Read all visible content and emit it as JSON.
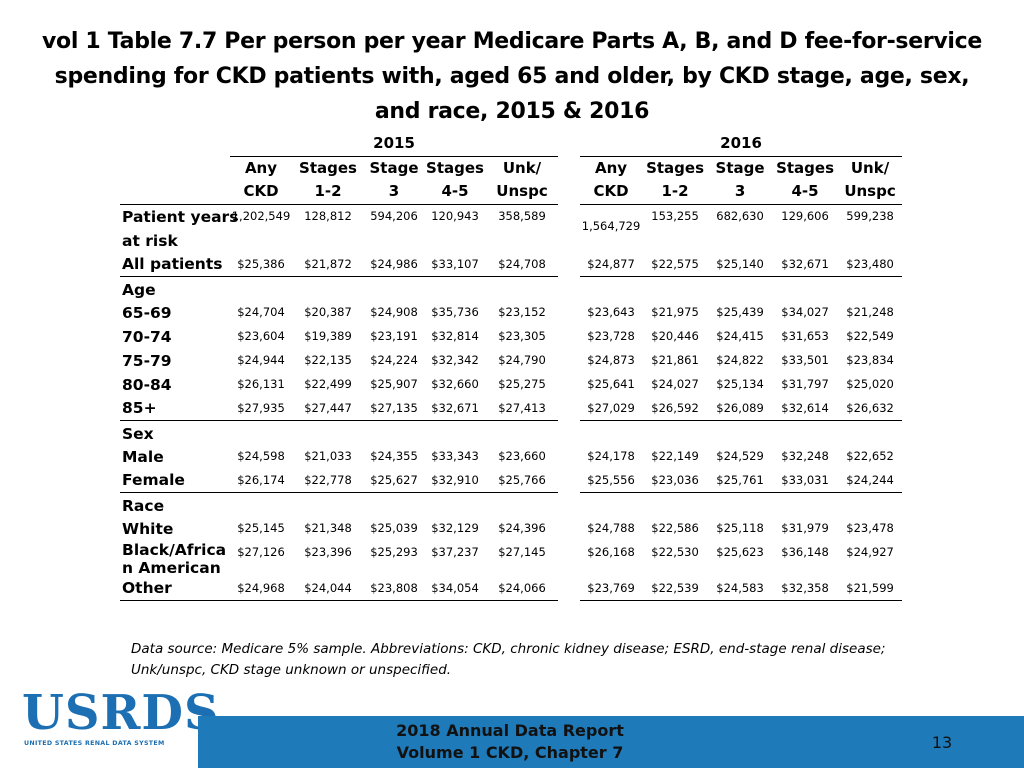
{
  "title": "vol 1 Table 7.7 Per person per year Medicare Parts A, B, and D fee-for-service spending for CKD patients with, aged 65 and older, by CKD stage, age, sex, and race, 2015 & 2016",
  "years": [
    "2015",
    "2016"
  ],
  "column_headers": [
    {
      "line1": "Any",
      "line2": "CKD"
    },
    {
      "line1": "Stages",
      "line2": "1-2"
    },
    {
      "line1": "Stage",
      "line2": "3"
    },
    {
      "line1": "Stages",
      "line2": "4-5"
    },
    {
      "line1": "Unk/",
      "line2": "Unspc"
    }
  ],
  "rows": {
    "patient_years": {
      "label_line1": "Patient years",
      "label_line2": "at risk",
      "y2015": [
        "1,202,549",
        "128,812",
        "594,206",
        "120,943",
        "358,589"
      ],
      "y2016": [
        "1,564,729",
        "153,255",
        "682,630",
        "129,606",
        "599,238"
      ]
    },
    "all_patients": {
      "label": "All patients",
      "y2015": [
        "$25,386",
        "$21,872",
        "$24,986",
        "$33,107",
        "$24,708"
      ],
      "y2016": [
        "$24,877",
        "$22,575",
        "$25,140",
        "$32,671",
        "$23,480"
      ]
    }
  },
  "sections": {
    "age": {
      "header": "Age",
      "rows": [
        {
          "label": "65-69",
          "y2015": [
            "$24,704",
            "$20,387",
            "$24,908",
            "$35,736",
            "$23,152"
          ],
          "y2016": [
            "$23,643",
            "$21,975",
            "$25,439",
            "$34,027",
            "$21,248"
          ]
        },
        {
          "label": "70-74",
          "y2015": [
            "$23,604",
            "$19,389",
            "$23,191",
            "$32,814",
            "$23,305"
          ],
          "y2016": [
            "$23,728",
            "$20,446",
            "$24,415",
            "$31,653",
            "$22,549"
          ]
        },
        {
          "label": "75-79",
          "y2015": [
            "$24,944",
            "$22,135",
            "$24,224",
            "$32,342",
            "$24,790"
          ],
          "y2016": [
            "$24,873",
            "$21,861",
            "$24,822",
            "$33,501",
            "$23,834"
          ]
        },
        {
          "label": "80-84",
          "y2015": [
            "$26,131",
            "$22,499",
            "$25,907",
            "$32,660",
            "$25,275"
          ],
          "y2016": [
            "$25,641",
            "$24,027",
            "$25,134",
            "$31,797",
            "$25,020"
          ]
        },
        {
          "label": "85+",
          "y2015": [
            "$27,935",
            "$27,447",
            "$27,135",
            "$32,671",
            "$27,413"
          ],
          "y2016": [
            "$27,029",
            "$26,592",
            "$26,089",
            "$32,614",
            "$26,632"
          ]
        }
      ]
    },
    "sex": {
      "header": "Sex",
      "rows": [
        {
          "label": "Male",
          "y2015": [
            "$24,598",
            "$21,033",
            "$24,355",
            "$33,343",
            "$23,660"
          ],
          "y2016": [
            "$24,178",
            "$22,149",
            "$24,529",
            "$32,248",
            "$22,652"
          ]
        },
        {
          "label": "Female",
          "y2015": [
            "$26,174",
            "$22,778",
            "$25,627",
            "$32,910",
            "$25,766"
          ],
          "y2016": [
            "$25,556",
            "$23,036",
            "$25,761",
            "$33,031",
            "$24,244"
          ]
        }
      ]
    },
    "race": {
      "header": "Race",
      "rows": [
        {
          "label": "White",
          "y2015": [
            "$25,145",
            "$21,348",
            "$25,039",
            "$32,129",
            "$24,396"
          ],
          "y2016": [
            "$24,788",
            "$22,586",
            "$25,118",
            "$31,979",
            "$23,478"
          ]
        },
        {
          "label_line1": "Black/Africa",
          "label_line2": "n American",
          "y2015": [
            "$27,126",
            "$23,396",
            "$25,293",
            "$37,237",
            "$27,145"
          ],
          "y2016": [
            "$26,168",
            "$22,530",
            "$25,623",
            "$36,148",
            "$24,927"
          ]
        },
        {
          "label": "Other",
          "y2015": [
            "$24,968",
            "$24,044",
            "$23,808",
            "$34,054",
            "$24,066"
          ],
          "y2016": [
            "$23,769",
            "$22,539",
            "$24,583",
            "$32,358",
            "$21,599"
          ]
        }
      ]
    }
  },
  "footnote": "Data source: Medicare 5% sample. Abbreviations: CKD, chronic kidney disease; ESRD, end-stage renal disease; Unk/unspc, CKD stage unknown or unspecified.",
  "logo": {
    "name": "USRDS",
    "subtitle": "UNITED STATES RENAL DATA SYSTEM"
  },
  "footer": {
    "line1": "2018 Annual Data Report",
    "line2": "Volume 1 CKD, Chapter 7"
  },
  "page_number": "13",
  "colors": {
    "footer_bar": "#1e7ab8",
    "logo": "#1b6fb2"
  }
}
